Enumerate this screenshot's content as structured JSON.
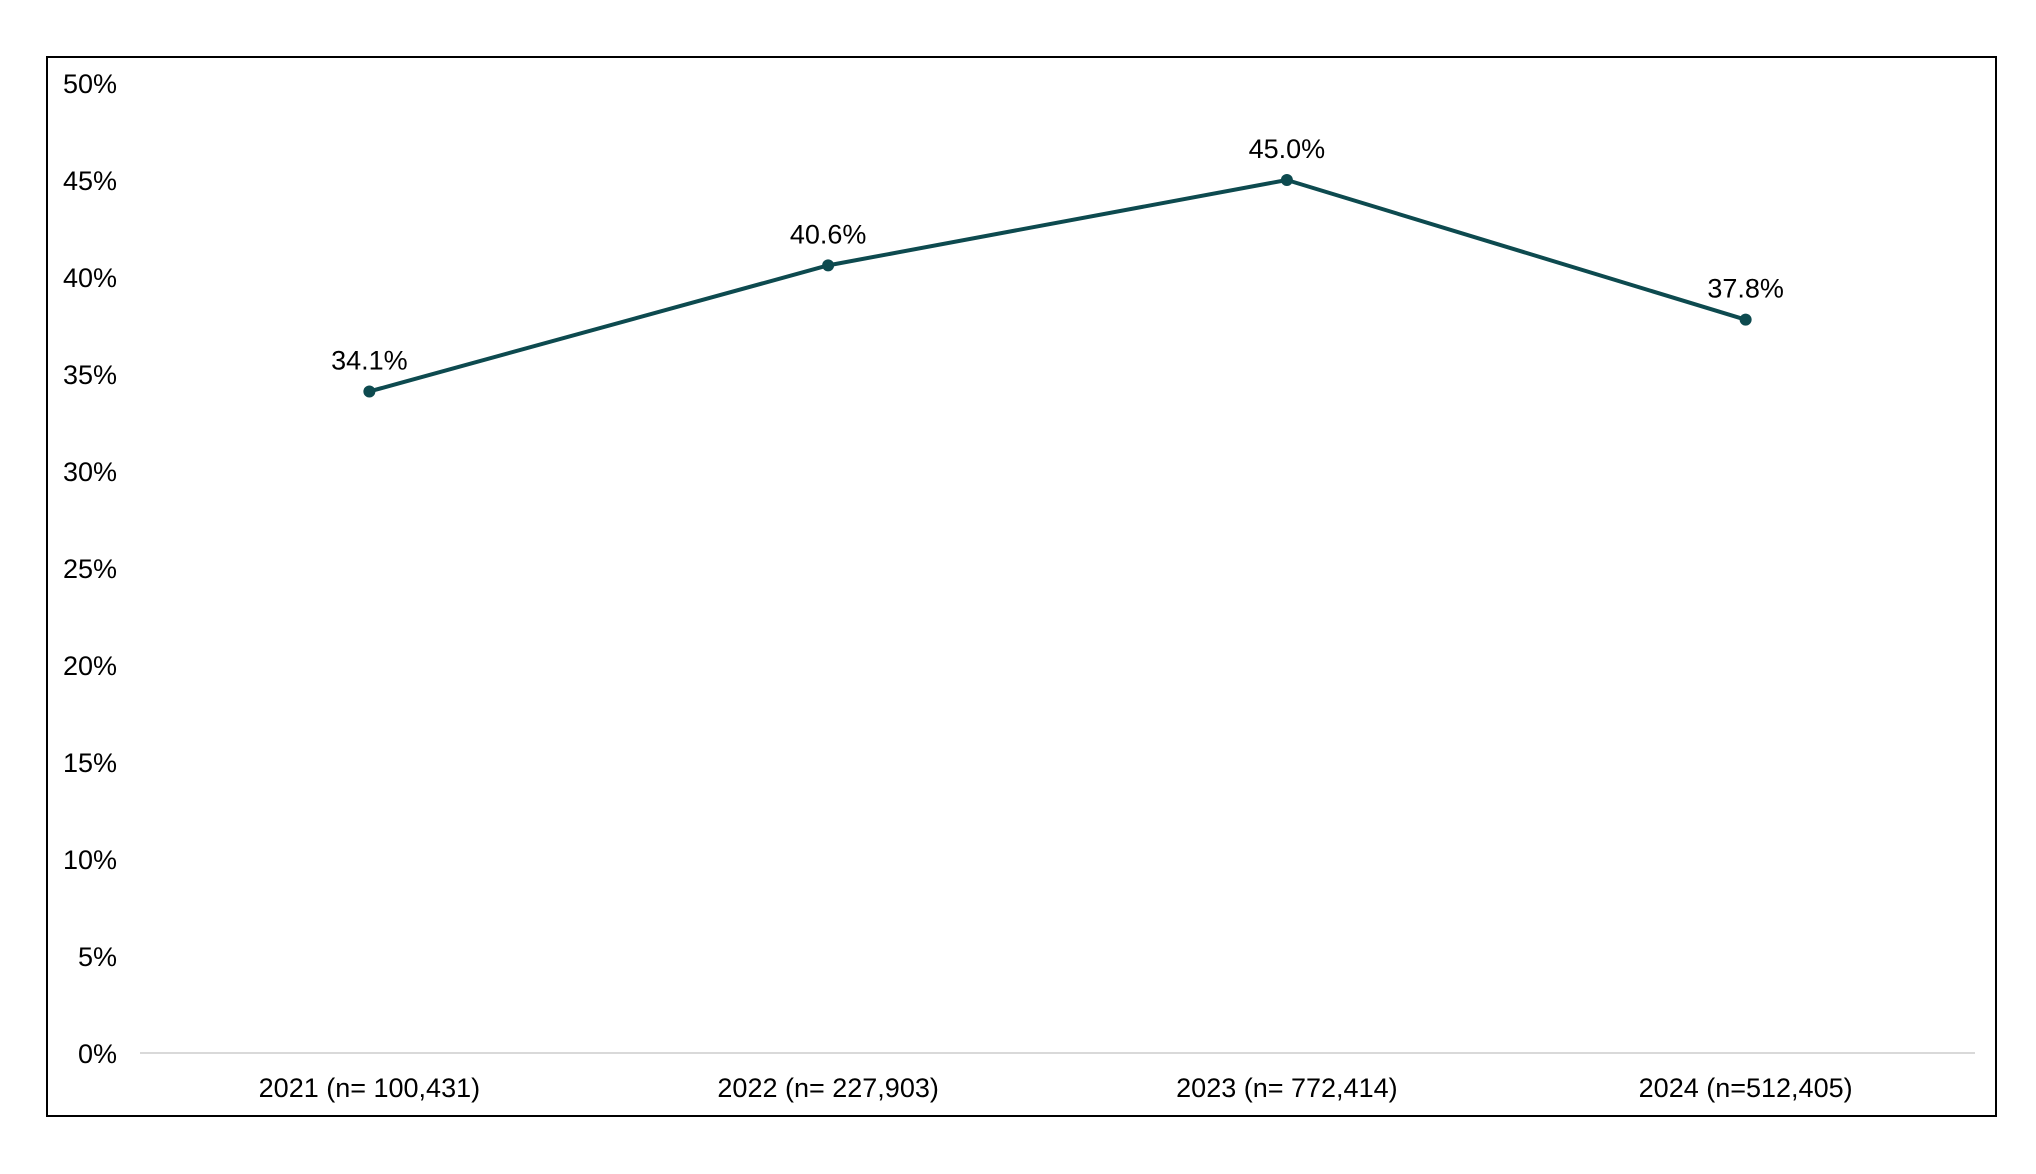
{
  "chart_data": {
    "type": "line",
    "title": "",
    "xlabel": "",
    "ylabel": "",
    "categories": [
      "2021 (n= 100,431)",
      "2022 (n= 227,903)",
      "2023 (n= 772,414)",
      "2024 (n=512,405)"
    ],
    "series": [
      {
        "values": [
          34.1,
          40.6,
          45.0,
          37.8
        ],
        "data_labels": [
          "34.1%",
          "40.6%",
          "45.0%",
          "37.8%"
        ],
        "color": "#0d4a4f"
      }
    ],
    "ylim": [
      0,
      50
    ],
    "yticks": [
      0,
      5,
      10,
      15,
      20,
      25,
      30,
      35,
      40,
      45,
      50
    ],
    "ytick_labels": [
      "0%",
      "5%",
      "10%",
      "15%",
      "20%",
      "25%",
      "30%",
      "35%",
      "40%",
      "45%",
      "50%"
    ],
    "grid": false,
    "legend": "none",
    "colors": {
      "line": "#0d4a4f",
      "frame": "#000000",
      "baseline": "#d9d9d9",
      "text": "#000000"
    }
  }
}
